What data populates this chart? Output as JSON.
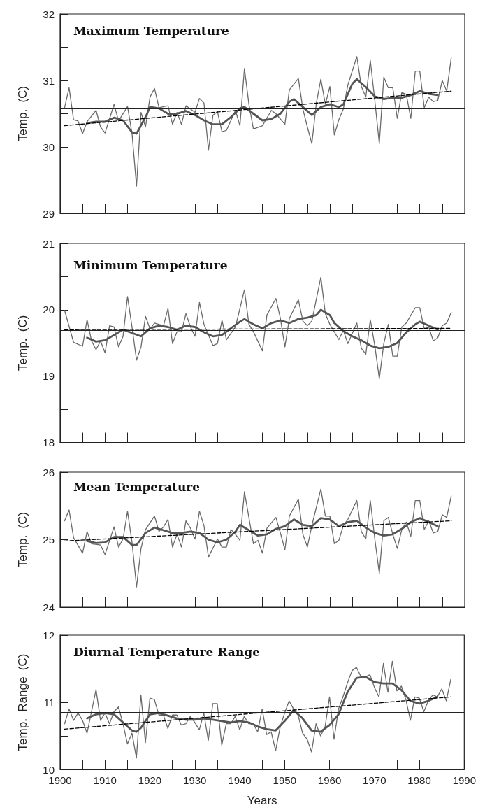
{
  "chart_data": [
    {
      "type": "line",
      "title": "Maximum Temperature",
      "ylabel": "Temp.  (C)",
      "xlim": [
        1900,
        1990
      ],
      "xticks": [
        1900,
        {
          "value": 1905,
          "label": null
        },
        1910,
        {
          "value": 1915,
          "label": null
        },
        1920,
        {
          "value": 1925,
          "label": null
        },
        1930,
        {
          "value": 1935,
          "label": null
        },
        1940,
        {
          "value": 1945,
          "label": null
        },
        1950,
        {
          "value": 1955,
          "label": null
        },
        1960,
        {
          "value": 1965,
          "label": null
        },
        1970,
        {
          "value": 1975,
          "label": null
        },
        1980,
        {
          "value": 1985,
          "label": null
        },
        1990
      ],
      "ylim": [
        29,
        32
      ],
      "yticks": [
        29,
        {
          "value": 29.5,
          "label": null
        },
        30,
        {
          "value": 30.5,
          "label": null
        },
        31,
        {
          "value": 31.5,
          "label": null
        },
        32
      ],
      "tick_labels": "y",
      "ref_lines": [
        {
          "axis": "y",
          "value": 30.58,
          "color": "#222222"
        }
      ],
      "series": [
        {
          "color": "#6a6a6a",
          "marker": "none",
          "x": [
            1901,
            1902,
            1903,
            1904,
            1905,
            1906,
            1908,
            1909,
            1910,
            1912,
            1913,
            1915,
            1916,
            1917,
            1918,
            1919,
            1920,
            1921,
            1922,
            1924,
            1925,
            1926,
            1927,
            1928,
            1930,
            1931,
            1932,
            1933,
            1934,
            1935,
            1936,
            1937,
            1939,
            1940,
            1941,
            1942,
            1943,
            1945,
            1947,
            1948,
            1950,
            1951,
            1953,
            1954,
            1955,
            1956,
            1957,
            1958,
            1959,
            1960,
            1961,
            1962,
            1963,
            1964,
            1966,
            1967,
            1968,
            1969,
            1970,
            1971,
            1972,
            1973,
            1974,
            1975,
            1976,
            1977,
            1978,
            1979,
            1980,
            1981,
            1982,
            1983,
            1984,
            1985,
            1986,
            1987
          ],
          "values": [
            30.59,
            30.89,
            30.41,
            30.39,
            30.2,
            30.38,
            30.55,
            30.3,
            30.21,
            30.64,
            30.39,
            30.61,
            30.2,
            29.41,
            30.52,
            30.3,
            30.75,
            30.88,
            30.59,
            30.62,
            30.34,
            30.52,
            30.34,
            30.62,
            30.52,
            30.73,
            30.66,
            29.95,
            30.48,
            30.53,
            30.23,
            30.25,
            30.55,
            30.32,
            31.18,
            30.64,
            30.27,
            30.32,
            30.55,
            30.5,
            30.34,
            30.86,
            31.03,
            30.57,
            30.3,
            30.05,
            30.66,
            31.02,
            30.64,
            30.91,
            30.18,
            30.41,
            30.57,
            30.93,
            31.36,
            30.91,
            30.75,
            31.3,
            30.7,
            30.05,
            31.05,
            30.89,
            30.89,
            30.43,
            30.82,
            30.79,
            30.43,
            31.14,
            31.14,
            30.59,
            30.75,
            30.68,
            30.7,
            31.0,
            30.84,
            31.34
          ]
        },
        {
          "color": "#555555",
          "x": [
            1906,
            1908,
            1910,
            1912,
            1914,
            1916,
            1917,
            1919,
            1920,
            1922,
            1924,
            1926,
            1928,
            1930,
            1932,
            1934,
            1936,
            1938,
            1940,
            1941,
            1943,
            1945,
            1947,
            1949,
            1951,
            1952,
            1954,
            1956,
            1958,
            1960,
            1962,
            1963,
            1965,
            1966,
            1968,
            1970,
            1972,
            1974,
            1976,
            1978,
            1980,
            1982,
            1984
          ],
          "values": [
            30.36,
            30.38,
            30.38,
            30.44,
            30.4,
            30.22,
            30.2,
            30.45,
            30.6,
            30.58,
            30.5,
            30.5,
            30.54,
            30.48,
            30.4,
            30.34,
            30.34,
            30.45,
            30.58,
            30.6,
            30.5,
            30.4,
            30.42,
            30.5,
            30.68,
            30.72,
            30.6,
            30.48,
            30.6,
            30.64,
            30.6,
            30.64,
            30.95,
            31.02,
            30.9,
            30.76,
            30.72,
            30.74,
            30.74,
            30.78,
            30.84,
            30.8,
            30.78
          ]
        },
        {
          "color": "#000000",
          "marker": "none",
          "line_style": "dashed",
          "x": [
            1901,
            1987
          ],
          "values": [
            30.32,
            30.84
          ]
        }
      ]
    },
    {
      "type": "line",
      "title": "Minimum Temperature",
      "ylabel": "Temp.  (C)",
      "xlim": [
        1900,
        1990
      ],
      "xticks": [
        1900,
        {
          "value": 1905,
          "label": null
        },
        1910,
        {
          "value": 1915,
          "label": null
        },
        1920,
        {
          "value": 1925,
          "label": null
        },
        1930,
        {
          "value": 1935,
          "label": null
        },
        1940,
        {
          "value": 1945,
          "label": null
        },
        1950,
        {
          "value": 1955,
          "label": null
        },
        1960,
        {
          "value": 1965,
          "label": null
        },
        1970,
        {
          "value": 1975,
          "label": null
        },
        1980,
        {
          "value": 1985,
          "label": null
        },
        1990
      ],
      "ylim": [
        18,
        21
      ],
      "yticks": [
        18,
        {
          "value": 18.5,
          "label": null
        },
        19,
        {
          "value": 19.5,
          "label": null
        },
        20,
        {
          "value": 20.5,
          "label": null
        },
        21
      ],
      "tick_labels": "y",
      "ref_lines": [
        {
          "axis": "y",
          "value": 19.69,
          "color": "#222222"
        }
      ],
      "series": [
        {
          "color": "#6a6a6a",
          "marker": "none",
          "x": [
            1901,
            1903,
            1905,
            1906,
            1907,
            1908,
            1909,
            1910,
            1911,
            1912,
            1913,
            1914,
            1915,
            1916,
            1917,
            1918,
            1919,
            1920,
            1921,
            1923,
            1924,
            1925,
            1926,
            1927,
            1928,
            1929,
            1930,
            1931,
            1932,
            1934,
            1935,
            1936,
            1937,
            1939,
            1941,
            1942,
            1943,
            1945,
            1946,
            1948,
            1949,
            1950,
            1951,
            1953,
            1954,
            1955,
            1956,
            1958,
            1959,
            1960,
            1962,
            1963,
            1964,
            1966,
            1967,
            1968,
            1969,
            1970,
            1971,
            1972,
            1973,
            1974,
            1975,
            1976,
            1977,
            1979,
            1980,
            1981,
            1982,
            1983,
            1984,
            1985,
            1986,
            1987
          ],
          "values": [
            19.99,
            19.51,
            19.45,
            19.85,
            19.53,
            19.4,
            19.53,
            19.35,
            19.76,
            19.74,
            19.44,
            19.6,
            20.2,
            19.74,
            19.24,
            19.44,
            19.9,
            19.71,
            19.8,
            19.76,
            20.02,
            19.49,
            19.67,
            19.67,
            19.94,
            19.74,
            19.6,
            20.11,
            19.78,
            19.46,
            19.49,
            19.84,
            19.55,
            19.74,
            20.3,
            19.78,
            19.67,
            19.38,
            19.92,
            20.17,
            19.87,
            19.44,
            19.87,
            20.15,
            19.83,
            19.76,
            19.83,
            20.49,
            19.94,
            19.78,
            19.55,
            19.69,
            19.49,
            19.8,
            19.42,
            19.33,
            19.85,
            19.46,
            18.96,
            19.49,
            19.78,
            19.3,
            19.3,
            19.74,
            19.8,
            20.03,
            20.03,
            19.71,
            19.74,
            19.53,
            19.58,
            19.76,
            19.8,
            19.96
          ]
        },
        {
          "color": "#555555",
          "x": [
            1906,
            1908,
            1910,
            1912,
            1914,
            1916,
            1918,
            1920,
            1922,
            1924,
            1926,
            1928,
            1930,
            1932,
            1934,
            1936,
            1938,
            1940,
            1941,
            1943,
            1945,
            1947,
            1949,
            1951,
            1953,
            1955,
            1957,
            1958,
            1960,
            1961,
            1963,
            1965,
            1967,
            1969,
            1971,
            1973,
            1975,
            1977,
            1979,
            1980,
            1982,
            1984
          ],
          "values": [
            19.58,
            19.52,
            19.54,
            19.62,
            19.7,
            19.65,
            19.6,
            19.72,
            19.76,
            19.74,
            19.7,
            19.76,
            19.74,
            19.66,
            19.6,
            19.62,
            19.72,
            19.82,
            19.86,
            19.78,
            19.72,
            19.8,
            19.84,
            19.8,
            19.86,
            19.88,
            19.92,
            20.0,
            19.92,
            19.8,
            19.68,
            19.6,
            19.54,
            19.46,
            19.42,
            19.44,
            19.5,
            19.66,
            19.78,
            19.82,
            19.76,
            19.7
          ]
        },
        {
          "color": "#000000",
          "marker": "none",
          "line_style": "dashed",
          "x": [
            1901,
            1987
          ],
          "values": [
            19.7,
            19.72
          ]
        }
      ]
    },
    {
      "type": "line",
      "title": "Mean Temperature",
      "ylabel": "Temp.  (C)",
      "xlim": [
        1900,
        1990
      ],
      "xticks": [
        1900,
        {
          "value": 1905,
          "label": null
        },
        1910,
        {
          "value": 1915,
          "label": null
        },
        1920,
        {
          "value": 1925,
          "label": null
        },
        1930,
        {
          "value": 1935,
          "label": null
        },
        1940,
        {
          "value": 1945,
          "label": null
        },
        1950,
        {
          "value": 1955,
          "label": null
        },
        1960,
        {
          "value": 1965,
          "label": null
        },
        1970,
        {
          "value": 1975,
          "label": null
        },
        1980,
        {
          "value": 1985,
          "label": null
        },
        1990
      ],
      "ylim": [
        24,
        26
      ],
      "yticks": [
        24,
        {
          "value": 24.5,
          "label": null
        },
        25,
        {
          "value": 25.5,
          "label": null
        },
        26
      ],
      "tick_labels": "y",
      "ref_lines": [
        {
          "axis": "y",
          "value": 25.15,
          "color": "#222222"
        }
      ],
      "series": [
        {
          "color": "#6a6a6a",
          "marker": "none",
          "x": [
            1901,
            1902,
            1903,
            1905,
            1906,
            1907,
            1909,
            1910,
            1912,
            1913,
            1914,
            1915,
            1916,
            1917,
            1918,
            1919,
            1921,
            1922,
            1923,
            1924,
            1925,
            1926,
            1927,
            1928,
            1929,
            1930,
            1931,
            1932,
            1933,
            1935,
            1936,
            1937,
            1938,
            1939,
            1940,
            1941,
            1943,
            1944,
            1945,
            1946,
            1948,
            1949,
            1950,
            1951,
            1953,
            1954,
            1955,
            1956,
            1958,
            1959,
            1960,
            1961,
            1962,
            1963,
            1964,
            1966,
            1967,
            1968,
            1969,
            1970,
            1971,
            1972,
            1973,
            1974,
            1975,
            1976,
            1977,
            1978,
            1979,
            1980,
            1981,
            1982,
            1983,
            1984,
            1985,
            1986,
            1987
          ],
          "values": [
            25.28,
            25.44,
            25.03,
            24.8,
            25.12,
            24.94,
            24.92,
            24.78,
            25.19,
            24.89,
            25.01,
            25.42,
            24.96,
            24.3,
            24.87,
            25.15,
            25.35,
            25.12,
            25.19,
            25.3,
            24.89,
            25.08,
            24.89,
            25.28,
            25.17,
            25.01,
            25.42,
            25.21,
            24.74,
            25.01,
            24.89,
            24.89,
            25.15,
            25.08,
            24.99,
            25.71,
            24.94,
            24.99,
            24.8,
            25.17,
            25.33,
            25.1,
            24.85,
            25.35,
            25.6,
            25.08,
            24.89,
            25.21,
            25.75,
            25.35,
            25.35,
            24.94,
            24.99,
            25.21,
            25.3,
            25.58,
            25.12,
            25.01,
            25.58,
            25.01,
            24.5,
            25.28,
            25.33,
            25.08,
            24.87,
            25.15,
            25.26,
            25.05,
            25.58,
            25.58,
            25.15,
            25.28,
            25.1,
            25.12,
            25.37,
            25.33,
            25.65
          ]
        },
        {
          "color": "#555555",
          "x": [
            1906,
            1908,
            1910,
            1912,
            1914,
            1916,
            1917,
            1919,
            1921,
            1923,
            1925,
            1927,
            1929,
            1931,
            1933,
            1935,
            1937,
            1939,
            1940,
            1942,
            1944,
            1946,
            1948,
            1950,
            1952,
            1954,
            1956,
            1958,
            1960,
            1962,
            1964,
            1966,
            1968,
            1970,
            1972,
            1974,
            1976,
            1978,
            1980,
            1982,
            1984
          ],
          "values": [
            24.98,
            24.95,
            24.96,
            25.04,
            25.04,
            24.92,
            24.92,
            25.1,
            25.18,
            25.14,
            25.1,
            25.1,
            25.12,
            25.1,
            25.0,
            24.96,
            25.0,
            25.12,
            25.22,
            25.14,
            25.06,
            25.08,
            25.16,
            25.2,
            25.3,
            25.22,
            25.2,
            25.32,
            25.3,
            25.2,
            25.26,
            25.28,
            25.18,
            25.1,
            25.06,
            25.08,
            25.16,
            25.26,
            25.32,
            25.26,
            25.2
          ]
        },
        {
          "color": "#000000",
          "marker": "none",
          "line_style": "dashed",
          "x": [
            1901,
            1987
          ],
          "values": [
            24.98,
            25.28
          ]
        }
      ]
    },
    {
      "type": "line",
      "title": "Diurnal Temperature Range",
      "ylabel": "Temp.  Range  (C)",
      "xlabel": "Years",
      "xlim": [
        1900,
        1990
      ],
      "xticks": [
        1900,
        {
          "value": 1905,
          "label": null
        },
        1910,
        {
          "value": 1915,
          "label": null
        },
        1920,
        {
          "value": 1925,
          "label": null
        },
        1930,
        {
          "value": 1935,
          "label": null
        },
        1940,
        {
          "value": 1945,
          "label": null
        },
        1950,
        {
          "value": 1955,
          "label": null
        },
        1960,
        {
          "value": 1965,
          "label": null
        },
        1970,
        {
          "value": 1975,
          "label": null
        },
        1980,
        {
          "value": 1985,
          "label": null
        },
        1990
      ],
      "ylim": [
        10,
        12
      ],
      "yticks": [
        10,
        {
          "value": 10.5,
          "label": null
        },
        11,
        {
          "value": 11.5,
          "label": null
        },
        12
      ],
      "ref_lines": [
        {
          "axis": "y",
          "value": 10.85,
          "color": "#222222"
        }
      ],
      "series": [
        {
          "color": "#6a6a6a",
          "marker": "none",
          "x": [
            1901,
            1902,
            1903,
            1904,
            1905,
            1906,
            1907,
            1908,
            1909,
            1910,
            1911,
            1912,
            1913,
            1914,
            1915,
            1916,
            1917,
            1918,
            1919,
            1920,
            1921,
            1922,
            1923,
            1924,
            1925,
            1926,
            1927,
            1928,
            1929,
            1930,
            1931,
            1932,
            1933,
            1934,
            1935,
            1936,
            1937,
            1938,
            1939,
            1940,
            1941,
            1942,
            1943,
            1944,
            1945,
            1946,
            1947,
            1948,
            1949,
            1950,
            1951,
            1952,
            1953,
            1954,
            1955,
            1956,
            1957,
            1958,
            1959,
            1960,
            1961,
            1962,
            1963,
            1964,
            1965,
            1966,
            1967,
            1968,
            1969,
            1970,
            1971,
            1972,
            1973,
            1974,
            1975,
            1976,
            1977,
            1978,
            1979,
            1980,
            1981,
            1982,
            1983,
            1984,
            1985,
            1986,
            1987
          ],
          "values": [
            10.68,
            10.9,
            10.73,
            10.84,
            10.73,
            10.54,
            10.86,
            11.19,
            10.73,
            10.84,
            10.68,
            10.86,
            10.93,
            10.68,
            10.38,
            10.54,
            10.17,
            11.11,
            10.4,
            11.06,
            11.04,
            10.81,
            10.81,
            10.61,
            10.81,
            10.81,
            10.66,
            10.68,
            10.79,
            10.7,
            10.59,
            10.84,
            10.43,
            10.98,
            10.98,
            10.36,
            10.68,
            10.68,
            10.79,
            10.59,
            10.79,
            10.68,
            10.68,
            10.56,
            10.9,
            10.52,
            10.56,
            10.28,
            10.63,
            10.84,
            11.02,
            10.9,
            10.81,
            10.54,
            10.45,
            10.26,
            10.68,
            10.5,
            10.63,
            11.08,
            10.45,
            10.9,
            11.08,
            11.29,
            11.47,
            11.52,
            11.38,
            11.38,
            11.41,
            11.22,
            11.08,
            11.58,
            11.15,
            11.61,
            11.17,
            11.24,
            11.04,
            10.73,
            11.08,
            11.06,
            10.86,
            11.02,
            11.11,
            11.08,
            11.2,
            11.02,
            11.34
          ]
        },
        {
          "color": "#555555",
          "x": [
            1906,
            1908,
            1910,
            1912,
            1914,
            1916,
            1917,
            1918,
            1920,
            1922,
            1924,
            1926,
            1928,
            1930,
            1932,
            1934,
            1936,
            1938,
            1940,
            1942,
            1944,
            1946,
            1948,
            1950,
            1952,
            1954,
            1956,
            1958,
            1960,
            1962,
            1964,
            1966,
            1968,
            1970,
            1972,
            1974,
            1976,
            1978,
            1980,
            1982,
            1984
          ],
          "values": [
            10.76,
            10.82,
            10.84,
            10.82,
            10.7,
            10.58,
            10.56,
            10.62,
            10.82,
            10.84,
            10.8,
            10.76,
            10.74,
            10.74,
            10.76,
            10.74,
            10.72,
            10.7,
            10.72,
            10.7,
            10.64,
            10.6,
            10.58,
            10.72,
            10.88,
            10.76,
            10.58,
            10.56,
            10.66,
            10.82,
            11.15,
            11.36,
            11.38,
            11.3,
            11.28,
            11.28,
            11.18,
            11.02,
            10.98,
            11.02,
            11.08
          ]
        },
        {
          "color": "#000000",
          "marker": "none",
          "line_style": "dashed",
          "x": [
            1901,
            1987
          ],
          "values": [
            10.6,
            11.08
          ]
        }
      ]
    }
  ]
}
